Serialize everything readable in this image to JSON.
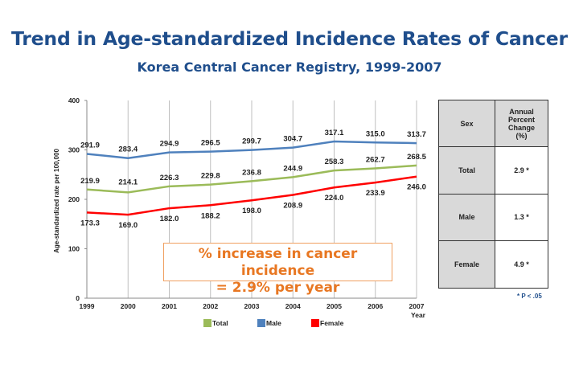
{
  "title": "Trend in Age-standardized Incidence Rates of Cancer",
  "subtitle": "Korea Central Cancer Registry, 1999-2007",
  "chart_data": {
    "type": "line",
    "x": [
      1999,
      2000,
      2001,
      2002,
      2003,
      2004,
      2005,
      2006,
      2007
    ],
    "xlabel": "Year",
    "ylabel": "Age-standardized  rate per 100,000",
    "ylim": [
      0,
      400
    ],
    "yticks": [
      0,
      100,
      200,
      300,
      400
    ],
    "grid": "vertical",
    "legend": "bottom",
    "series": [
      {
        "name": "Total",
        "color": "#9bbb59",
        "values": [
          219.9,
          214.1,
          226.3,
          229.8,
          236.8,
          244.9,
          258.3,
          262.7,
          268.5
        ],
        "labels": [
          "219.9",
          "214.1",
          "226.3",
          "229.8",
          "236.8",
          "244.9",
          "258.3",
          "262.7",
          "268.5"
        ]
      },
      {
        "name": "Male",
        "color": "#4f81bd",
        "values": [
          291.9,
          283.4,
          294.9,
          296.5,
          299.7,
          304.7,
          317.1,
          315.0,
          313.7
        ],
        "labels": [
          "291.9",
          "283.4",
          "294.9",
          "296.5",
          "299.7",
          "304.7",
          "317.1",
          "315.0",
          "313.7"
        ]
      },
      {
        "name": "Female",
        "color": "#ff0000",
        "values": [
          173.3,
          169.0,
          182.0,
          188.2,
          198.0,
          208.9,
          224.0,
          233.9,
          246.0
        ],
        "labels": [
          "173.3",
          "169.0",
          "182.0",
          "188.2",
          "198.0",
          "208.9",
          "224.0",
          "233.9",
          "246.0"
        ]
      }
    ],
    "annotation": [
      "% increase in cancer incidence",
      "= 2.9% per year"
    ]
  },
  "table": {
    "headers": [
      "Sex",
      "Annual Percent Change (%)"
    ],
    "rows": [
      [
        "Total",
        "2.9 *"
      ],
      [
        "Male",
        "1.3 *"
      ],
      [
        "Female",
        "4.9 *"
      ]
    ],
    "footnote": "* P < .05"
  }
}
